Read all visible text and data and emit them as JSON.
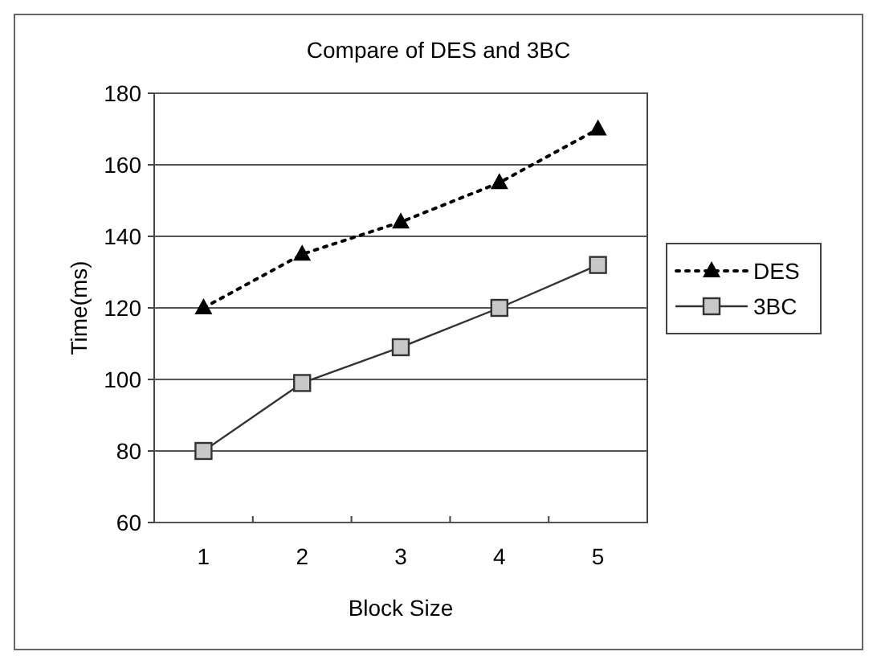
{
  "chart_data": {
    "type": "line",
    "title": "Compare of DES and 3BC",
    "xlabel": "Block Size",
    "ylabel": "Time(ms)",
    "categories": [
      "1",
      "2",
      "3",
      "4",
      "5"
    ],
    "ylim": [
      60,
      180
    ],
    "yticks": [
      60,
      80,
      100,
      120,
      140,
      160,
      180
    ],
    "grid": "y",
    "legend": "right",
    "series": [
      {
        "name": "DES",
        "color": "#000000",
        "values": [
          120,
          135,
          144,
          155,
          170
        ],
        "marker": "triangle",
        "line_style": "dotted"
      },
      {
        "name": "3BC",
        "color": "#333333",
        "values": [
          80,
          99,
          109,
          120,
          132
        ],
        "marker": "square",
        "line_style": "solid"
      }
    ]
  }
}
